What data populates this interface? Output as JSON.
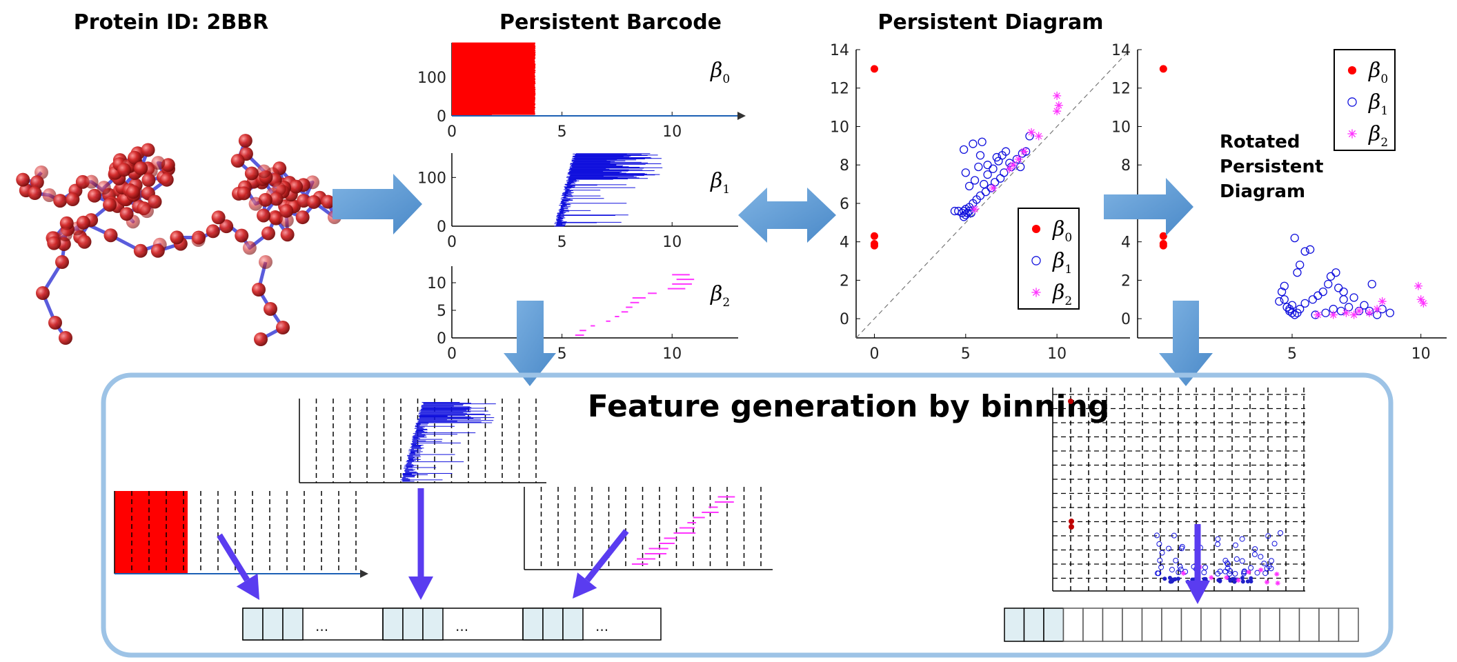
{
  "titles": {
    "protein": "Protein ID: 2BBR",
    "barcode": "Persistent Barcode",
    "diagram": "Persistent Diagram",
    "rotated_line1": "Rotated",
    "rotated_line2": "Persistent",
    "rotated_line3": "Diagram",
    "feature": "Feature generation by binning"
  },
  "legend": {
    "symbol": "β",
    "subs": [
      "0",
      "1",
      "2"
    ]
  },
  "ellipsis": "...",
  "colors": {
    "beta0": "#ff0000",
    "beta1": "#1010dd",
    "beta2": "#ff33ff",
    "arrow_light": "#5b9bd5",
    "arrow_dark": "#5a3cf0",
    "panel_border": "#9dc3e6",
    "cell_fill": "#dfeef3"
  },
  "chart_data": [
    {
      "type": "bar",
      "name": "barcode-beta0",
      "label": "β0",
      "x_ticks": [
        0,
        5,
        10
      ],
      "y_ticks": [
        0,
        100
      ],
      "xlim": [
        0,
        13
      ],
      "ylim": [
        0,
        190
      ],
      "bars_count": 190,
      "death_range": [
        0,
        3.8
      ]
    },
    {
      "type": "bar",
      "name": "barcode-beta1",
      "label": "β1",
      "x_ticks": [
        0,
        5,
        10
      ],
      "y_ticks": [
        0,
        100
      ],
      "xlim": [
        0,
        13
      ],
      "ylim": [
        0,
        150
      ],
      "birth_range": [
        4.5,
        5.8
      ],
      "death_range": [
        5.3,
        9.7
      ]
    },
    {
      "type": "bar",
      "name": "barcode-beta2",
      "label": "β2",
      "x_ticks": [
        0,
        5,
        10
      ],
      "y_ticks": [
        0,
        5,
        10
      ],
      "xlim": [
        0,
        13
      ],
      "ylim": [
        0,
        13
      ],
      "bars": [
        [
          5.6,
          6.0
        ],
        [
          5.8,
          6.1
        ],
        [
          6.3,
          6.5
        ],
        [
          7.0,
          7.2
        ],
        [
          7.4,
          7.6
        ],
        [
          7.7,
          8.0
        ],
        [
          7.9,
          8.2
        ],
        [
          8.1,
          8.5
        ],
        [
          8.2,
          8.8
        ],
        [
          8.9,
          9.3
        ],
        [
          9.8,
          10.6
        ],
        [
          10.0,
          10.9
        ],
        [
          10.2,
          11.0
        ],
        [
          10.0,
          10.8
        ]
      ]
    },
    {
      "type": "scatter",
      "name": "persistence-diagram",
      "x_ticks": [
        0,
        5,
        10
      ],
      "y_ticks": [
        0,
        2,
        4,
        6,
        8,
        10,
        12,
        14
      ],
      "xlim": [
        -1,
        14
      ],
      "ylim": [
        -1,
        14
      ],
      "series": [
        {
          "name": "β0",
          "marker": "dot",
          "points": [
            [
              0,
              13.0
            ],
            [
              0,
              4.3
            ],
            [
              0,
              3.9
            ],
            [
              0,
              3.8
            ]
          ]
        },
        {
          "name": "β1",
          "marker": "circle",
          "points": [
            [
              4.6,
              5.6
            ],
            [
              4.8,
              5.5
            ],
            [
              4.9,
              5.3
            ],
            [
              5.0,
              5.4
            ],
            [
              5.1,
              5.5
            ],
            [
              5.2,
              5.6
            ],
            [
              5.3,
              5.5
            ],
            [
              5.0,
              5.7
            ],
            [
              4.9,
              5.6
            ],
            [
              5.2,
              5.8
            ],
            [
              5.4,
              6.0
            ],
            [
              5.6,
              6.2
            ],
            [
              5.8,
              6.4
            ],
            [
              5.2,
              6.9
            ],
            [
              5.5,
              7.2
            ],
            [
              6.0,
              7.0
            ],
            [
              6.2,
              7.5
            ],
            [
              6.5,
              7.8
            ],
            [
              6.8,
              8.2
            ],
            [
              7.0,
              8.5
            ],
            [
              7.2,
              8.7
            ],
            [
              6.4,
              6.8
            ],
            [
              6.6,
              7.1
            ],
            [
              6.9,
              7.3
            ],
            [
              7.1,
              7.6
            ],
            [
              7.5,
              7.9
            ],
            [
              7.8,
              8.3
            ],
            [
              8.1,
              8.6
            ],
            [
              8.3,
              8.7
            ],
            [
              5.8,
              8.5
            ],
            [
              4.9,
              8.8
            ],
            [
              5.4,
              9.1
            ],
            [
              5.9,
              9.2
            ],
            [
              6.2,
              8.0
            ],
            [
              6.7,
              8.4
            ],
            [
              5.7,
              7.9
            ],
            [
              5.0,
              7.6
            ],
            [
              6.1,
              6.6
            ],
            [
              8.0,
              7.9
            ],
            [
              8.5,
              9.5
            ],
            [
              7.4,
              8.1
            ],
            [
              4.4,
              5.6
            ]
          ]
        },
        {
          "name": "β2",
          "marker": "star",
          "points": [
            [
              8.6,
              9.7
            ],
            [
              9.0,
              9.5
            ],
            [
              10.0,
              11.6
            ],
            [
              10.1,
              11.1
            ],
            [
              10.0,
              10.8
            ],
            [
              8.2,
              8.7
            ],
            [
              7.6,
              8.0
            ],
            [
              7.4,
              7.8
            ],
            [
              5.5,
              5.7
            ],
            [
              6.5,
              6.8
            ],
            [
              7.9,
              8.3
            ]
          ]
        }
      ]
    },
    {
      "type": "scatter",
      "name": "rotated-diagram",
      "x_ticks": [
        5,
        10
      ],
      "y_ticks": [
        0,
        2,
        4,
        6,
        8,
        10,
        12,
        14
      ],
      "xlim": [
        -1,
        11
      ],
      "ylim": [
        -1,
        14
      ],
      "series": [
        {
          "name": "β0",
          "marker": "dot",
          "points": [
            [
              0,
              13.0
            ],
            [
              0,
              4.3
            ],
            [
              0,
              3.9
            ],
            [
              0,
              3.8
            ]
          ]
        },
        {
          "name": "β1",
          "marker": "circle",
          "points": [
            [
              4.6,
              1.4
            ],
            [
              4.7,
              1.0
            ],
            [
              4.8,
              0.6
            ],
            [
              4.9,
              0.4
            ],
            [
              5.0,
              0.3
            ],
            [
              5.1,
              0.2
            ],
            [
              5.2,
              0.3
            ],
            [
              4.9,
              0.5
            ],
            [
              5.0,
              0.7
            ],
            [
              5.3,
              0.5
            ],
            [
              5.5,
              0.8
            ],
            [
              5.8,
              1.0
            ],
            [
              6.0,
              1.2
            ],
            [
              5.2,
              2.4
            ],
            [
              5.5,
              3.5
            ],
            [
              5.7,
              3.6
            ],
            [
              5.3,
              2.8
            ],
            [
              5.1,
              4.2
            ],
            [
              6.2,
              1.4
            ],
            [
              6.5,
              2.2
            ],
            [
              6.8,
              1.6
            ],
            [
              7.0,
              1.0
            ],
            [
              7.2,
              0.6
            ],
            [
              7.6,
              0.4
            ],
            [
              8.0,
              0.4
            ],
            [
              8.3,
              0.2
            ],
            [
              8.5,
              0.5
            ],
            [
              8.8,
              0.3
            ],
            [
              6.6,
              0.5
            ],
            [
              6.9,
              0.4
            ],
            [
              6.3,
              0.3
            ],
            [
              5.9,
              0.2
            ],
            [
              4.5,
              0.9
            ],
            [
              4.7,
              1.7
            ],
            [
              7.4,
              1.1
            ],
            [
              7.8,
              0.7
            ],
            [
              8.1,
              1.8
            ],
            [
              6.7,
              2.4
            ],
            [
              6.4,
              1.8
            ],
            [
              7.0,
              1.4
            ]
          ]
        },
        {
          "name": "β2",
          "marker": "star",
          "points": [
            [
              9.9,
              1.7
            ],
            [
              10.0,
              1.0
            ],
            [
              10.1,
              0.8
            ],
            [
              8.3,
              0.5
            ],
            [
              7.6,
              0.4
            ],
            [
              7.1,
              0.3
            ],
            [
              6.0,
              0.2
            ],
            [
              8.5,
              0.9
            ],
            [
              8.0,
              0.3
            ],
            [
              7.4,
              0.2
            ],
            [
              6.6,
              0.2
            ]
          ]
        }
      ]
    }
  ]
}
